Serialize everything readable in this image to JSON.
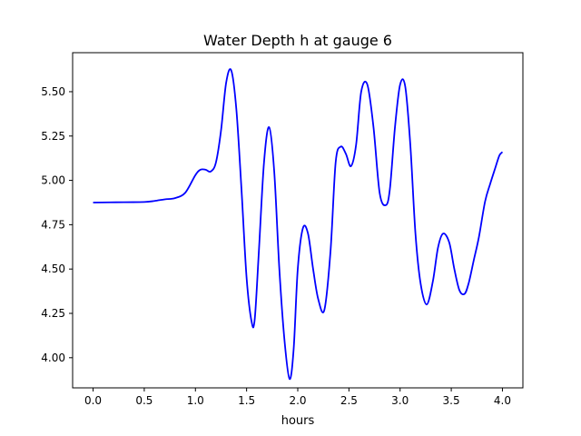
{
  "chart_data": {
    "type": "line",
    "title": "Water Depth h at gauge 6",
    "xlabel": "hours",
    "ylabel": "",
    "xlim": [
      -0.2,
      4.2
    ],
    "ylim": [
      3.83,
      5.72
    ],
    "grid": false,
    "x_ticks": [
      0.0,
      0.5,
      1.0,
      1.5,
      2.0,
      2.5,
      3.0,
      3.5,
      4.0
    ],
    "x_tick_labels": [
      "0.0",
      "0.5",
      "1.0",
      "1.5",
      "2.0",
      "2.5",
      "3.0",
      "3.5",
      "4.0"
    ],
    "y_ticks": [
      4.0,
      4.25,
      4.5,
      4.75,
      5.0,
      5.25,
      5.5
    ],
    "y_tick_labels": [
      "4.00",
      "4.25",
      "4.50",
      "4.75",
      "5.00",
      "5.25",
      "5.50"
    ],
    "series": [
      {
        "color": "#0000ff",
        "x": [
          0.0,
          0.3,
          0.5,
          0.6,
          0.7,
          0.8,
          0.9,
          1.0,
          1.05,
          1.1,
          1.15,
          1.2,
          1.25,
          1.3,
          1.35,
          1.4,
          1.45,
          1.5,
          1.55,
          1.58,
          1.62,
          1.67,
          1.72,
          1.77,
          1.82,
          1.87,
          1.92,
          1.96,
          2.0,
          2.05,
          2.1,
          2.15,
          2.2,
          2.26,
          2.32,
          2.37,
          2.42,
          2.47,
          2.52,
          2.57,
          2.62,
          2.68,
          2.74,
          2.8,
          2.86,
          2.9,
          2.95,
          3.0,
          3.05,
          3.1,
          3.15,
          3.2,
          3.26,
          3.32,
          3.37,
          3.42,
          3.48,
          3.53,
          3.58,
          3.63,
          3.67,
          3.72,
          3.77,
          3.83,
          3.88,
          3.93,
          3.97,
          4.0
        ],
        "y": [
          4.875,
          4.877,
          4.878,
          4.884,
          4.893,
          4.9,
          4.93,
          5.03,
          5.06,
          5.06,
          5.05,
          5.1,
          5.28,
          5.55,
          5.62,
          5.4,
          4.95,
          4.45,
          4.2,
          4.22,
          4.6,
          5.1,
          5.3,
          5.05,
          4.5,
          4.1,
          3.88,
          4.05,
          4.5,
          4.73,
          4.7,
          4.5,
          4.33,
          4.27,
          4.6,
          5.1,
          5.19,
          5.15,
          5.08,
          5.2,
          5.5,
          5.54,
          5.3,
          4.93,
          4.86,
          4.95,
          5.3,
          5.54,
          5.53,
          5.2,
          4.7,
          4.42,
          4.3,
          4.43,
          4.62,
          4.7,
          4.65,
          4.5,
          4.38,
          4.36,
          4.42,
          4.55,
          4.68,
          4.88,
          4.98,
          5.07,
          5.14,
          5.16
        ]
      }
    ]
  }
}
